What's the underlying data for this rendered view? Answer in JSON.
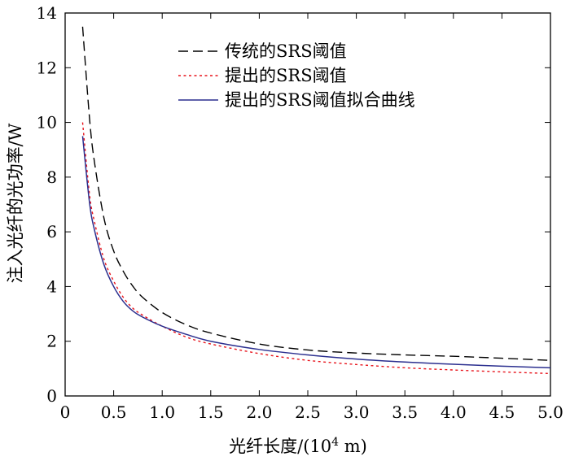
{
  "chart_data": {
    "type": "line",
    "title": "",
    "xlabel_prefix": "光纤长度/(10",
    "xlabel_sup": "4",
    "xlabel_suffix": " m)",
    "ylabel": "注入光纤的光功率/W",
    "xlim": [
      0,
      5
    ],
    "ylim": [
      0,
      14
    ],
    "xticks": [
      "0",
      "0.5",
      "1.0",
      "1.5",
      "2.0",
      "2.5",
      "3.0",
      "3.5",
      "4.0",
      "4.5",
      "5.0"
    ],
    "yticks": [
      "0",
      "2",
      "4",
      "6",
      "8",
      "10",
      "12",
      "14"
    ],
    "grid": false,
    "legend_position": "top-right",
    "series": [
      {
        "name": "传统的SRS阈值",
        "color": "#000000",
        "dash": "dashed",
        "x": [
          0.18,
          0.25,
          0.3,
          0.4,
          0.5,
          0.6,
          0.7,
          0.8,
          1.0,
          1.25,
          1.5,
          2.0,
          2.5,
          3.0,
          3.5,
          4.0,
          4.5,
          5.0
        ],
        "y": [
          13.5,
          10.2,
          8.6,
          6.5,
          5.3,
          4.55,
          4.0,
          3.6,
          3.05,
          2.6,
          2.3,
          1.9,
          1.68,
          1.57,
          1.5,
          1.45,
          1.38,
          1.3
        ]
      },
      {
        "name": "提出的SRS阈值",
        "color": "#e8141c",
        "dash": "dotted",
        "x": [
          0.18,
          0.25,
          0.3,
          0.4,
          0.5,
          0.6,
          0.7,
          0.8,
          1.0,
          1.25,
          1.5,
          2.0,
          2.5,
          3.0,
          3.5,
          4.0,
          4.5,
          5.0
        ],
        "y": [
          10.0,
          7.4,
          6.4,
          5.0,
          4.2,
          3.6,
          3.2,
          2.95,
          2.55,
          2.15,
          1.9,
          1.55,
          1.3,
          1.15,
          1.03,
          0.95,
          0.88,
          0.82
        ]
      },
      {
        "name": "提出的SRS阈值拟合曲线",
        "color": "#2b2f8f",
        "dash": "solid",
        "x": [
          0.18,
          0.25,
          0.3,
          0.4,
          0.5,
          0.6,
          0.7,
          0.8,
          1.0,
          1.25,
          1.5,
          2.0,
          2.5,
          3.0,
          3.5,
          4.0,
          4.5,
          5.0
        ],
        "y": [
          9.5,
          7.1,
          6.1,
          4.8,
          4.0,
          3.45,
          3.1,
          2.88,
          2.55,
          2.25,
          2.0,
          1.7,
          1.5,
          1.35,
          1.24,
          1.16,
          1.09,
          1.03
        ]
      }
    ]
  }
}
